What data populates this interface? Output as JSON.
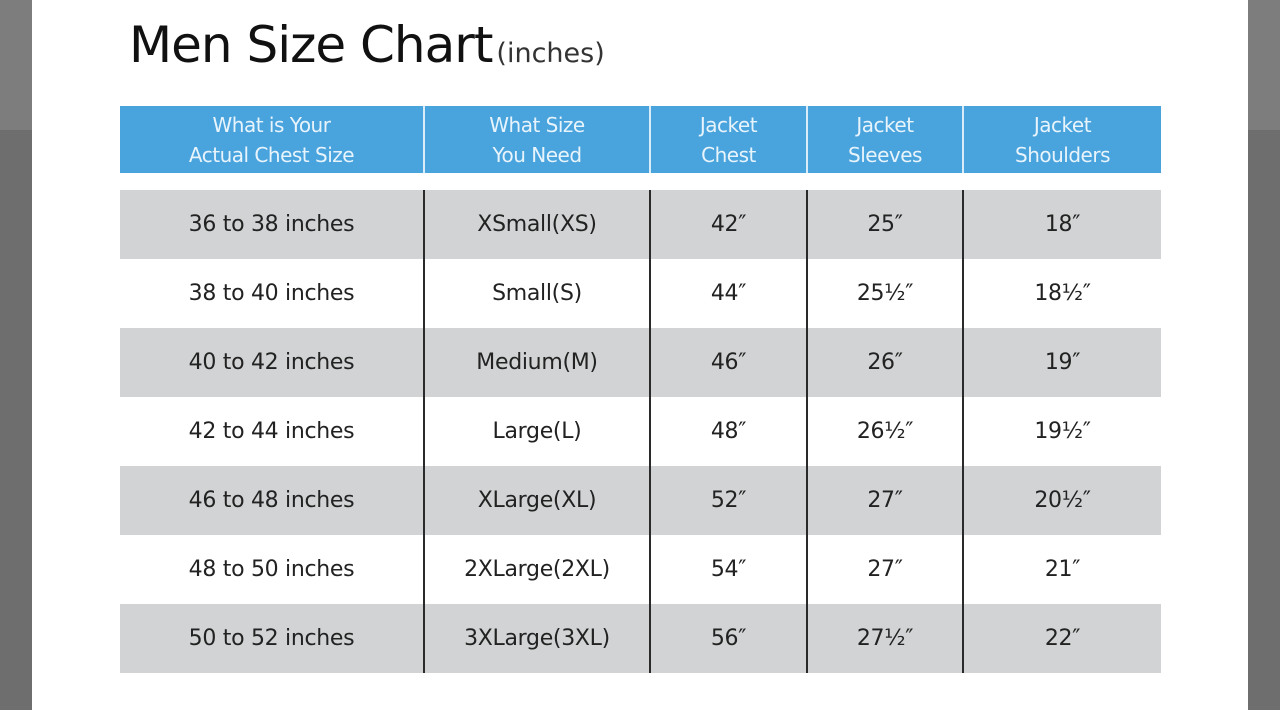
{
  "title": {
    "main": "Men Size Chart",
    "unit": "(inches)"
  },
  "colors": {
    "header": "#49a3dd",
    "alt_row": "#d1d3d4",
    "background": "#6e6e6e"
  },
  "table": {
    "headers": [
      "What is Your\nActual Chest Size",
      "What Size\nYou Need",
      "Jacket\nChest",
      "Jacket\nSleeves",
      "Jacket\nShoulders"
    ],
    "rows": [
      [
        "36 to 38 inches",
        "XSmall(XS)",
        "42″",
        "25″",
        "18″"
      ],
      [
        "38 to 40 inches",
        "Small(S)",
        "44″",
        "25½″",
        "18½″"
      ],
      [
        "40 to 42 inches",
        "Medium(M)",
        "46″",
        "26″",
        "19″"
      ],
      [
        "42 to 44 inches",
        "Large(L)",
        "48″",
        "26½″",
        "19½″"
      ],
      [
        "46 to 48 inches",
        "XLarge(XL)",
        "52″",
        "27″",
        "20½″"
      ],
      [
        "48 to 50 inches",
        "2XLarge(2XL)",
        "54″",
        "27″",
        "21″"
      ],
      [
        "50 to 52 inches",
        "3XLarge(3XL)",
        "56″",
        "27½″",
        "22″"
      ]
    ]
  }
}
